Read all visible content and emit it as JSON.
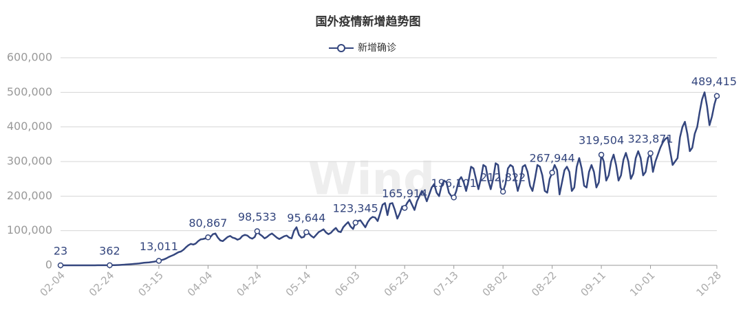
{
  "chart_data": {
    "type": "line",
    "title": "国外疫情新增趋势图",
    "watermark": "Wind",
    "categories": [
      "02-04",
      null,
      null,
      null,
      null,
      null,
      null,
      null,
      null,
      null,
      null,
      null,
      null,
      null,
      null,
      null,
      null,
      null,
      null,
      null,
      "02-24",
      null,
      null,
      null,
      null,
      null,
      null,
      null,
      null,
      null,
      null,
      null,
      null,
      null,
      null,
      null,
      null,
      null,
      null,
      null,
      "03-15",
      null,
      null,
      null,
      null,
      null,
      null,
      null,
      null,
      null,
      null,
      null,
      null,
      null,
      null,
      null,
      null,
      null,
      null,
      null,
      "04-04",
      null,
      null,
      null,
      null,
      null,
      null,
      null,
      null,
      null,
      null,
      null,
      null,
      null,
      null,
      null,
      null,
      null,
      null,
      null,
      "04-24",
      null,
      null,
      null,
      null,
      null,
      null,
      null,
      null,
      null,
      null,
      null,
      null,
      null,
      null,
      null,
      null,
      null,
      null,
      null,
      "05-14",
      null,
      null,
      null,
      null,
      null,
      null,
      null,
      null,
      null,
      null,
      null,
      null,
      null,
      null,
      null,
      null,
      null,
      null,
      null,
      "06-03",
      null,
      null,
      null,
      null,
      null,
      null,
      null,
      null,
      null,
      null,
      null,
      null,
      null,
      null,
      null,
      null,
      null,
      null,
      null,
      "06-23",
      null,
      null,
      null,
      null,
      null,
      null,
      null,
      null,
      null,
      null,
      null,
      null,
      null,
      null,
      null,
      null,
      null,
      null,
      null,
      "07-13",
      null,
      null,
      null,
      null,
      null,
      null,
      null,
      null,
      null,
      null,
      null,
      null,
      null,
      null,
      null,
      null,
      null,
      null,
      null,
      "08-02",
      null,
      null,
      null,
      null,
      null,
      null,
      null,
      null,
      null,
      null,
      null,
      null,
      null,
      null,
      null,
      null,
      null,
      null,
      null,
      "08-22",
      null,
      null,
      null,
      null,
      null,
      null,
      null,
      null,
      null,
      null,
      null,
      null,
      null,
      null,
      null,
      null,
      null,
      null,
      null,
      "09-11",
      null,
      null,
      null,
      null,
      null,
      null,
      null,
      null,
      null,
      null,
      null,
      null,
      null,
      null,
      null,
      null,
      null,
      null,
      null,
      "10-01",
      null,
      null,
      null,
      null,
      null,
      null,
      null,
      null,
      null,
      null,
      null,
      null,
      null,
      null,
      null,
      null,
      null,
      null,
      null,
      null,
      null,
      null,
      null,
      null,
      null,
      null,
      "10-28"
    ],
    "series": [
      {
        "name": "新增确诊",
        "color": "#34467e",
        "values": [
          23,
          20,
          30,
          40,
          35,
          50,
          60,
          55,
          70,
          80,
          75,
          90,
          100,
          110,
          120,
          150,
          180,
          220,
          270,
          300,
          362,
          450,
          600,
          800,
          1100,
          1500,
          1900,
          2500,
          3000,
          3600,
          4200,
          4800,
          5500,
          6500,
          7500,
          8000,
          8500,
          9500,
          10500,
          11800,
          13011,
          15000,
          17000,
          20000,
          24000,
          27000,
          30000,
          34000,
          38000,
          40000,
          45000,
          52000,
          58000,
          62000,
          60000,
          63000,
          70000,
          75000,
          76000,
          78000,
          80867,
          82000,
          90000,
          92000,
          80000,
          72000,
          70000,
          76000,
          82000,
          85000,
          80000,
          78000,
          74000,
          77000,
          85000,
          88000,
          86000,
          80000,
          77000,
          82000,
          98533,
          90000,
          85000,
          78000,
          82000,
          88000,
          92000,
          86000,
          80000,
          76000,
          80000,
          84000,
          86000,
          80000,
          78000,
          100000,
          110000,
          88000,
          80000,
          82000,
          95644,
          92000,
          85000,
          80000,
          88000,
          96000,
          100000,
          104000,
          95000,
          90000,
          94000,
          102000,
          108000,
          98000,
          96000,
          110000,
          118000,
          125000,
          112000,
          105000,
          123345,
          128000,
          130000,
          120000,
          110000,
          125000,
          135000,
          140000,
          138000,
          128000,
          150000,
          175000,
          180000,
          145000,
          178000,
          180000,
          160000,
          135000,
          150000,
          170000,
          165914,
          180000,
          190000,
          175000,
          160000,
          185000,
          200000,
          215000,
          205000,
          185000,
          205000,
          225000,
          235000,
          210000,
          200000,
          230000,
          245000,
          240000,
          210000,
          200000,
          196101,
          215000,
          245000,
          255000,
          240000,
          215000,
          245000,
          285000,
          280000,
          250000,
          220000,
          250000,
          290000,
          285000,
          245000,
          220000,
          250000,
          295000,
          290000,
          225000,
          212822,
          235000,
          280000,
          290000,
          285000,
          250000,
          215000,
          240000,
          285000,
          290000,
          270000,
          230000,
          215000,
          250000,
          290000,
          285000,
          260000,
          215000,
          210000,
          250000,
          267944,
          290000,
          275000,
          205000,
          240000,
          275000,
          285000,
          270000,
          215000,
          225000,
          285000,
          310000,
          280000,
          230000,
          225000,
          270000,
          290000,
          270000,
          225000,
          240000,
          319504,
          300000,
          245000,
          260000,
          300000,
          320000,
          290000,
          245000,
          260000,
          305000,
          325000,
          300000,
          250000,
          265000,
          310000,
          330000,
          310000,
          260000,
          270000,
          310000,
          323871,
          270000,
          300000,
          320000,
          340000,
          355000,
          365000,
          370000,
          330000,
          290000,
          300000,
          310000,
          370000,
          400000,
          415000,
          380000,
          330000,
          340000,
          380000,
          400000,
          443000,
          480000,
          500000,
          460000,
          405000,
          430000,
          465000,
          489415
        ],
        "value_labels": [
          "23",
          null,
          null,
          null,
          null,
          null,
          null,
          null,
          null,
          null,
          null,
          null,
          null,
          null,
          null,
          null,
          null,
          null,
          null,
          null,
          "362",
          null,
          null,
          null,
          null,
          null,
          null,
          null,
          null,
          null,
          null,
          null,
          null,
          null,
          null,
          null,
          null,
          null,
          null,
          null,
          "13,011",
          null,
          null,
          null,
          null,
          null,
          null,
          null,
          null,
          null,
          null,
          null,
          null,
          null,
          null,
          null,
          null,
          null,
          null,
          null,
          "80,867",
          null,
          null,
          null,
          null,
          null,
          null,
          null,
          null,
          null,
          null,
          null,
          null,
          null,
          null,
          null,
          null,
          null,
          null,
          null,
          "98,533",
          null,
          null,
          null,
          null,
          null,
          null,
          null,
          null,
          null,
          null,
          null,
          null,
          null,
          null,
          null,
          null,
          null,
          null,
          null,
          "95,644",
          null,
          null,
          null,
          null,
          null,
          null,
          null,
          null,
          null,
          null,
          null,
          null,
          null,
          null,
          null,
          null,
          null,
          null,
          null,
          "123,345",
          null,
          null,
          null,
          null,
          null,
          null,
          null,
          null,
          null,
          null,
          null,
          null,
          null,
          null,
          null,
          null,
          null,
          null,
          null,
          "165,914",
          null,
          null,
          null,
          null,
          null,
          null,
          null,
          null,
          null,
          null,
          null,
          null,
          null,
          null,
          null,
          null,
          null,
          null,
          null,
          "196,101",
          null,
          null,
          null,
          null,
          null,
          null,
          null,
          null,
          null,
          null,
          null,
          null,
          null,
          null,
          null,
          null,
          null,
          null,
          null,
          "212,822",
          null,
          null,
          null,
          null,
          null,
          null,
          null,
          null,
          null,
          null,
          null,
          null,
          null,
          null,
          null,
          null,
          null,
          null,
          null,
          "267,944",
          null,
          null,
          null,
          null,
          null,
          null,
          null,
          null,
          null,
          null,
          null,
          null,
          null,
          null,
          null,
          null,
          null,
          null,
          null,
          "319,504",
          null,
          null,
          null,
          null,
          null,
          null,
          null,
          null,
          null,
          null,
          null,
          null,
          null,
          null,
          null,
          null,
          null,
          null,
          null,
          "323,871",
          null,
          null,
          null,
          null,
          null,
          null,
          null,
          null,
          null,
          null,
          null,
          null,
          null,
          null,
          null,
          null,
          null,
          null,
          null,
          null,
          null,
          null,
          null,
          null,
          null,
          null,
          "489,415"
        ]
      }
    ],
    "ylim": [
      0,
      600000
    ],
    "yticks": [
      0,
      {
        "value": 100000,
        "label": "100,000"
      },
      {
        "value": 200000,
        "label": "200,000"
      },
      {
        "value": 300000,
        "label": "300,000"
      },
      {
        "value": 400000,
        "label": "400,000"
      },
      {
        "value": 500000,
        "label": "500,000"
      },
      {
        "value": 600000,
        "label": "600,000"
      }
    ],
    "grid": true
  }
}
